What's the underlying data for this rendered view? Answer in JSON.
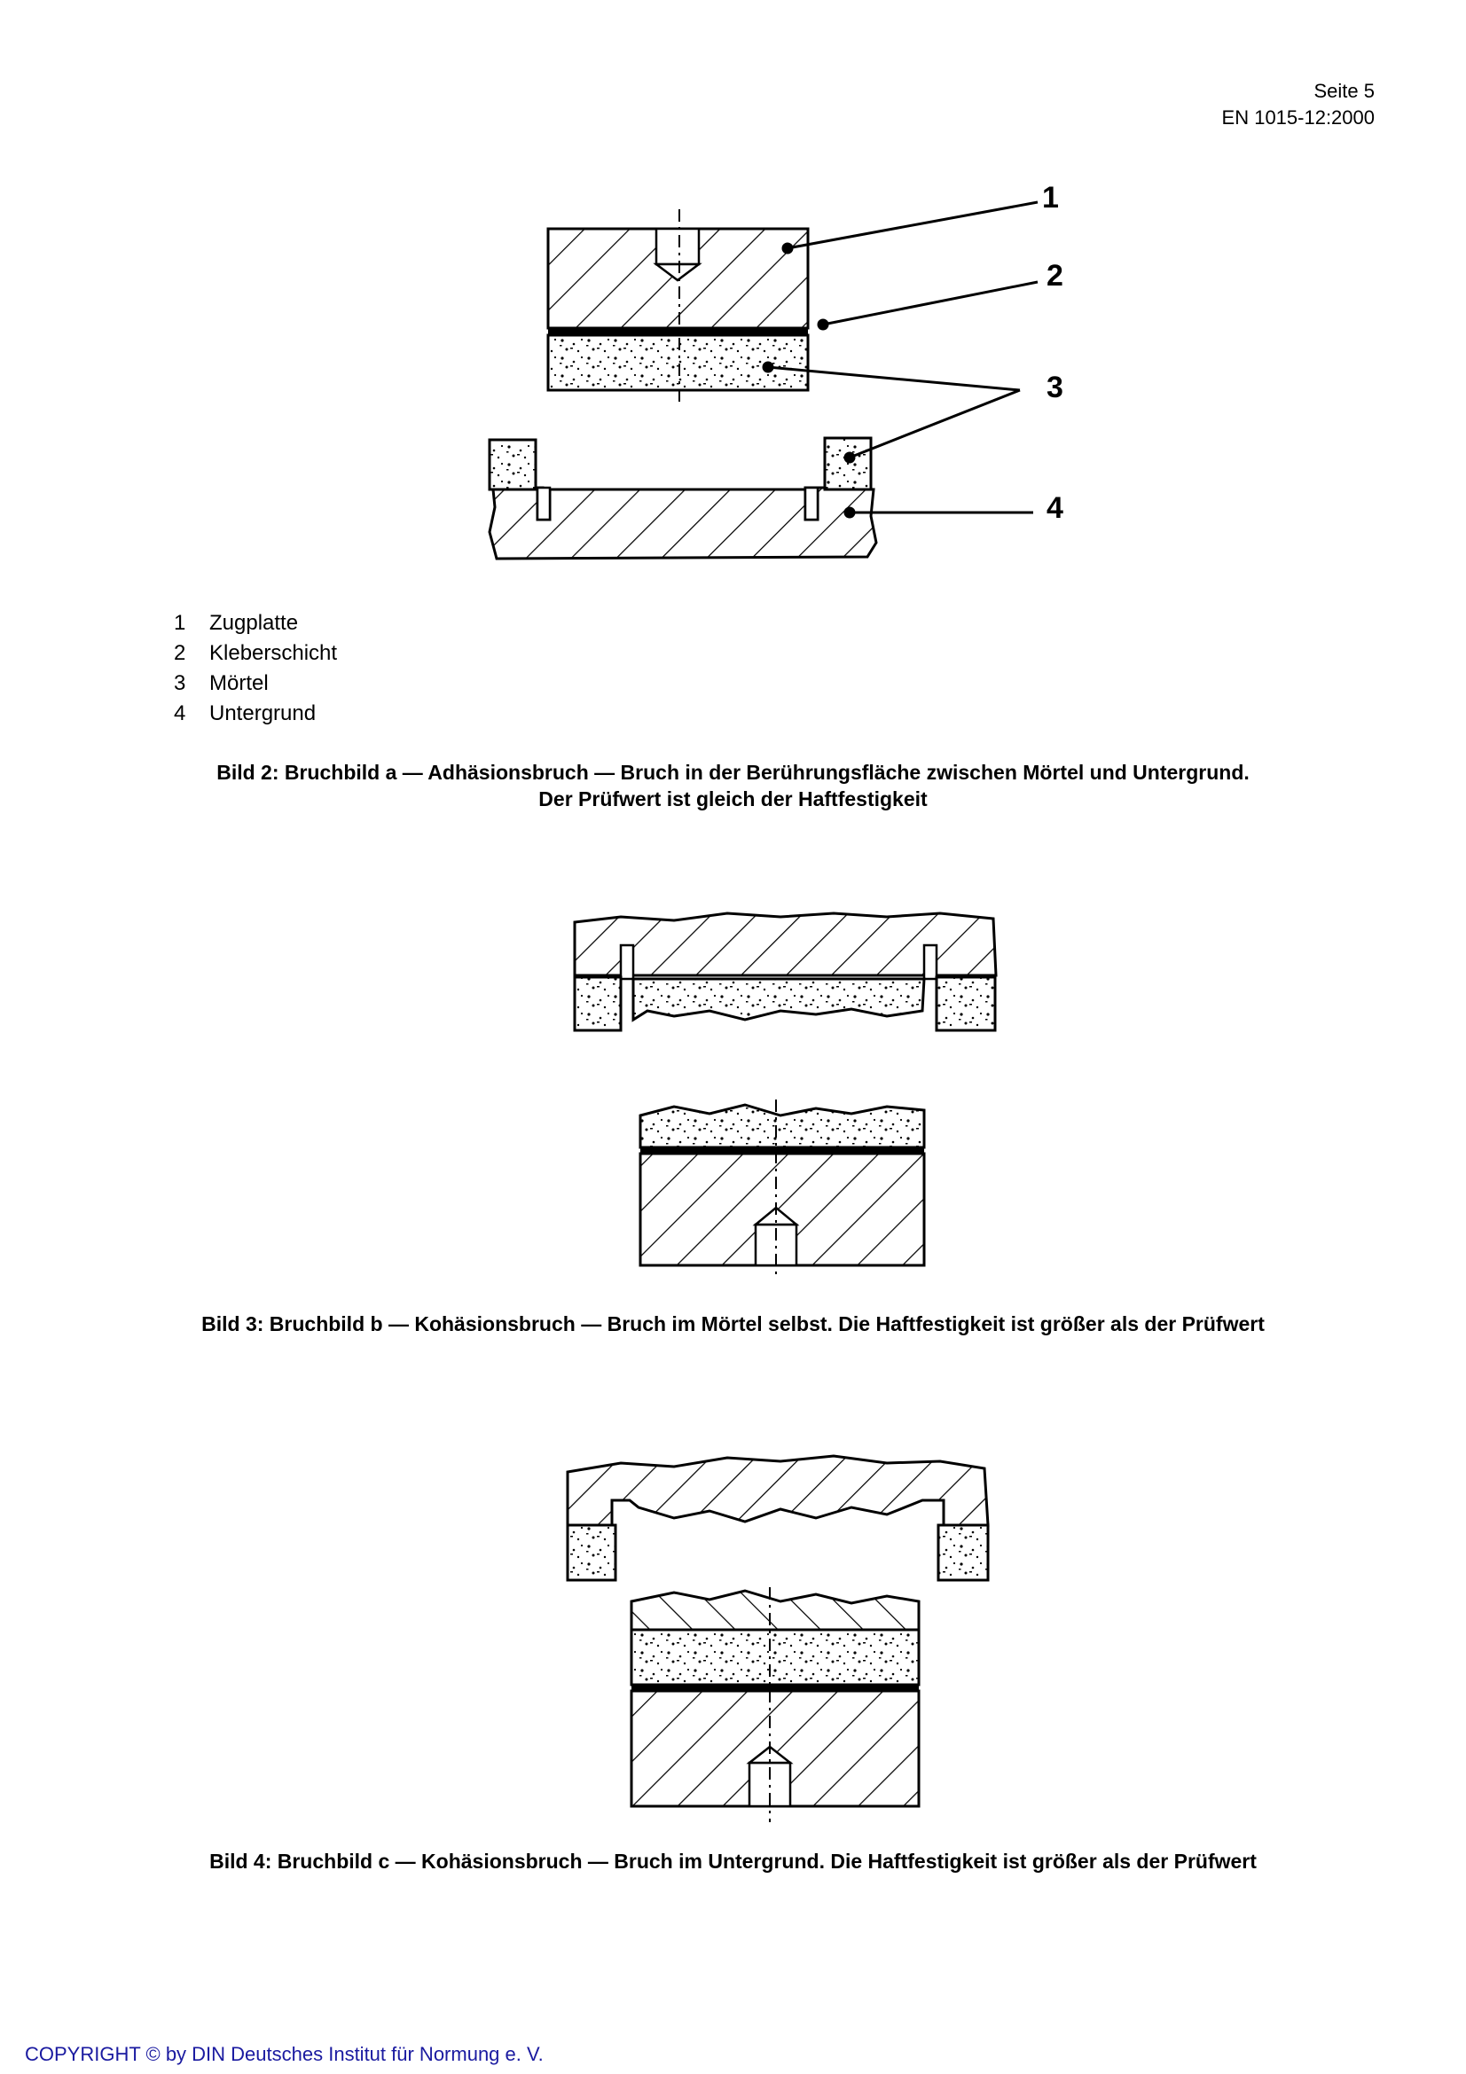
{
  "header": {
    "page": "Seite 5",
    "standard": "EN 1015-12:2000"
  },
  "figure2": {
    "callouts": [
      "1",
      "2",
      "3",
      "4"
    ],
    "legend": [
      {
        "num": "1",
        "label": "Zugplatte"
      },
      {
        "num": "2",
        "label": "Kleberschicht"
      },
      {
        "num": "3",
        "label": "Mörtel"
      },
      {
        "num": "4",
        "label": "Untergrund"
      }
    ],
    "caption_line1": "Bild 2:  Bruchbild a — Adhäsionsbruch — Bruch in der Berührungsfläche zwischen Mörtel und Untergrund.",
    "caption_line2": "Der Prüfwert ist gleich der Haftfestigkeit"
  },
  "figure3": {
    "caption": "Bild 3:  Bruchbild b — Kohäsionsbruch — Bruch im Mörtel selbst. Die Haftfestigkeit ist größer als der Prüfwert"
  },
  "figure4": {
    "caption": "Bild 4:  Bruchbild c — Kohäsionsbruch — Bruch im Untergrund. Die Haftfestigkeit ist größer als der Prüfwert"
  },
  "footer": {
    "copyright": "COPYRIGHT © by DIN Deutsches Institut für Normung e. V."
  }
}
